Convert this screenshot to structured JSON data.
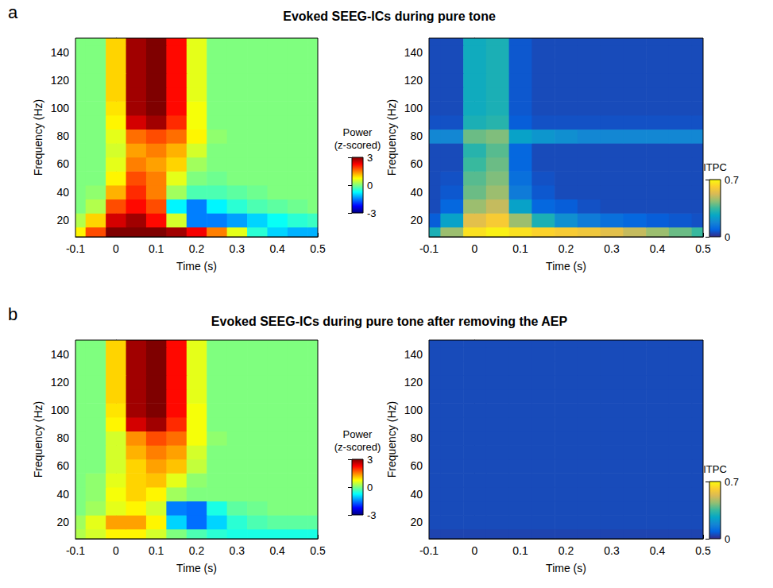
{
  "chart_data": [
    {
      "type": "heatmap",
      "panel": "a",
      "title": "Evoked SEEG-ICs during pure tone",
      "x_label": "Time (s)",
      "y_label": "Frequency (Hz)",
      "xlim": [
        -0.1,
        0.5
      ],
      "xticks": [
        -0.1,
        0,
        0.1,
        0.2,
        0.3,
        0.4,
        0.5
      ],
      "ylim": [
        8,
        150
      ],
      "yticks": [
        20,
        40,
        60,
        80,
        100,
        120,
        140
      ],
      "grid": false,
      "x": [
        -0.1,
        -0.05,
        0,
        0.05,
        0.1,
        0.15,
        0.2,
        0.25,
        0.3,
        0.35,
        0.4,
        0.45,
        0.5
      ],
      "y": [
        10,
        20,
        30,
        40,
        50,
        60,
        70,
        80,
        90,
        100,
        110,
        120,
        130,
        140,
        150
      ],
      "z": [
        [
          0.8,
          1.8,
          3,
          3,
          3,
          2.8,
          2.3,
          1.5,
          0.6,
          -0.5,
          -1.0,
          -1.2,
          -1.2
        ],
        [
          0.3,
          1.0,
          2.5,
          2.8,
          2.2,
          0.5,
          -1.5,
          -1.5,
          -1.3,
          -1.0,
          -0.7,
          -0.5,
          -0.4
        ],
        [
          0,
          0.3,
          1.8,
          2.2,
          1.8,
          -0.8,
          -1.5,
          -0.8,
          -0.5,
          -0.3,
          -0.2,
          -0.1,
          0
        ],
        [
          0,
          0.1,
          1.2,
          2.0,
          1.5,
          0.2,
          -0.3,
          -0.3,
          -0.2,
          -0.1,
          0,
          0,
          0
        ],
        [
          0,
          0,
          0.8,
          1.8,
          1.5,
          0.6,
          0,
          -0.1,
          0,
          0,
          0,
          0,
          0
        ],
        [
          0,
          0,
          0.6,
          1.5,
          1.3,
          1.0,
          0.2,
          0,
          0,
          0,
          0,
          0,
          0
        ],
        [
          0,
          0,
          0.5,
          1.3,
          1.5,
          1.2,
          0.5,
          0,
          0,
          0,
          0,
          0,
          0
        ],
        [
          0,
          0,
          0.6,
          1.6,
          1.8,
          1.6,
          0.8,
          0.1,
          0,
          0,
          0,
          0,
          0
        ],
        [
          0,
          0,
          0.8,
          2.5,
          2.8,
          2.0,
          0.7,
          0,
          0,
          0,
          0,
          0,
          0
        ],
        [
          0,
          0,
          0.9,
          2.8,
          3,
          2.2,
          0.7,
          0,
          0,
          0,
          0,
          0,
          0
        ],
        [
          0,
          0,
          1.0,
          2.8,
          3,
          2.2,
          0.6,
          0,
          0,
          0,
          0,
          0,
          0
        ],
        [
          0,
          0,
          1.0,
          2.8,
          3,
          2.2,
          0.6,
          0,
          0,
          0,
          0,
          0,
          0
        ],
        [
          0,
          0,
          1.0,
          2.8,
          3,
          2.2,
          0.6,
          0,
          0,
          0,
          0,
          0,
          0
        ],
        [
          0,
          0,
          1.0,
          2.8,
          3,
          2.2,
          0.6,
          0,
          0,
          0,
          0,
          0,
          0
        ],
        [
          0,
          0,
          1.0,
          2.8,
          3,
          2.2,
          0.6,
          0,
          0,
          0,
          0,
          0,
          0
        ]
      ],
      "colorbar": {
        "label": "Power (z-scored)",
        "range": [
          -3,
          3
        ],
        "ticks": [
          -3,
          0,
          3
        ],
        "colors": [
          "#00007f",
          "#0000ff",
          "#007fff",
          "#00ffff",
          "#7fff7f",
          "#ffff00",
          "#ff7f00",
          "#ff0000",
          "#7f0000"
        ]
      }
    },
    {
      "type": "heatmap",
      "x_label": "Time (s)",
      "y_label": "Frequency (Hz)",
      "xlim": [
        -0.1,
        0.5
      ],
      "xticks": [
        -0.1,
        0,
        0.1,
        0.2,
        0.3,
        0.4,
        0.5
      ],
      "ylim": [
        8,
        150
      ],
      "yticks": [
        20,
        40,
        60,
        80,
        100,
        120,
        140
      ],
      "grid": false,
      "x": [
        -0.1,
        -0.05,
        0,
        0.05,
        0.1,
        0.15,
        0.2,
        0.25,
        0.3,
        0.35,
        0.4,
        0.45,
        0.5
      ],
      "y": [
        10,
        20,
        30,
        40,
        50,
        60,
        70,
        80,
        90,
        100,
        110,
        120,
        130,
        140,
        150
      ],
      "z": [
        [
          0.3,
          0.45,
          0.65,
          0.68,
          0.65,
          0.62,
          0.6,
          0.58,
          0.55,
          0.5,
          0.45,
          0.4,
          0.35
        ],
        [
          0.08,
          0.25,
          0.55,
          0.6,
          0.45,
          0.3,
          0.2,
          0.15,
          0.12,
          0.1,
          0.08,
          0.07,
          0.06
        ],
        [
          0.05,
          0.1,
          0.45,
          0.5,
          0.25,
          0.1,
          0.08,
          0.06,
          0.05,
          0.05,
          0.05,
          0.05,
          0.05
        ],
        [
          0.05,
          0.07,
          0.4,
          0.45,
          0.15,
          0.07,
          0.05,
          0.05,
          0.05,
          0.05,
          0.05,
          0.05,
          0.05
        ],
        [
          0.05,
          0.06,
          0.38,
          0.42,
          0.12,
          0.06,
          0.05,
          0.05,
          0.05,
          0.05,
          0.05,
          0.05,
          0.05
        ],
        [
          0.05,
          0.05,
          0.35,
          0.4,
          0.1,
          0.05,
          0.05,
          0.05,
          0.05,
          0.05,
          0.05,
          0.05,
          0.05
        ],
        [
          0.05,
          0.05,
          0.32,
          0.38,
          0.1,
          0.05,
          0.05,
          0.05,
          0.05,
          0.05,
          0.05,
          0.05,
          0.05
        ],
        [
          0.18,
          0.18,
          0.4,
          0.42,
          0.25,
          0.22,
          0.2,
          0.18,
          0.18,
          0.18,
          0.18,
          0.18,
          0.18
        ],
        [
          0.06,
          0.06,
          0.3,
          0.32,
          0.08,
          0.06,
          0.06,
          0.06,
          0.06,
          0.06,
          0.06,
          0.06,
          0.06
        ],
        [
          0.05,
          0.05,
          0.28,
          0.3,
          0.07,
          0.05,
          0.05,
          0.05,
          0.05,
          0.05,
          0.05,
          0.05,
          0.05
        ],
        [
          0.05,
          0.05,
          0.28,
          0.3,
          0.07,
          0.05,
          0.05,
          0.05,
          0.05,
          0.05,
          0.05,
          0.05,
          0.05
        ],
        [
          0.05,
          0.05,
          0.28,
          0.3,
          0.07,
          0.05,
          0.05,
          0.05,
          0.05,
          0.05,
          0.05,
          0.05,
          0.05
        ],
        [
          0.05,
          0.05,
          0.28,
          0.3,
          0.07,
          0.05,
          0.05,
          0.05,
          0.05,
          0.05,
          0.05,
          0.05,
          0.05
        ],
        [
          0.05,
          0.05,
          0.28,
          0.3,
          0.07,
          0.05,
          0.05,
          0.05,
          0.05,
          0.05,
          0.05,
          0.05,
          0.05
        ],
        [
          0.05,
          0.05,
          0.28,
          0.3,
          0.07,
          0.05,
          0.05,
          0.05,
          0.05,
          0.05,
          0.05,
          0.05,
          0.05
        ]
      ],
      "colorbar": {
        "label": "ITPC",
        "range": [
          0,
          0.7
        ],
        "ticks": [
          0,
          0.7
        ],
        "colors": [
          "#352a87",
          "#0363e1",
          "#1485d4",
          "#06a7c6",
          "#38b99e",
          "#92bf73",
          "#d9ba56",
          "#fcce2e",
          "#f9fb0e"
        ]
      }
    },
    {
      "type": "heatmap",
      "panel": "b",
      "title": "Evoked SEEG-ICs during pure tone after removing the AEP",
      "x_label": "Time (s)",
      "y_label": "Frequency (Hz)",
      "xlim": [
        -0.1,
        0.5
      ],
      "xticks": [
        -0.1,
        0,
        0.1,
        0.2,
        0.3,
        0.4,
        0.5
      ],
      "ylim": [
        8,
        150
      ],
      "yticks": [
        20,
        40,
        60,
        80,
        100,
        120,
        140
      ],
      "grid": false,
      "x": [
        -0.1,
        -0.05,
        0,
        0.05,
        0.1,
        0.15,
        0.2,
        0.25,
        0.3,
        0.35,
        0.4,
        0.45,
        0.5
      ],
      "y": [
        10,
        20,
        30,
        40,
        50,
        60,
        70,
        80,
        90,
        100,
        110,
        120,
        130,
        140,
        150
      ],
      "z": [
        [
          0.3,
          0.5,
          0.8,
          0.8,
          0.5,
          0,
          -0.3,
          -0.5,
          -0.6,
          -0.6,
          -0.6,
          -0.6,
          -0.6
        ],
        [
          0.2,
          0.6,
          1.3,
          1.3,
          0.8,
          -1.0,
          -1.6,
          -1.0,
          -0.5,
          -0.3,
          -0.2,
          -0.2,
          -0.2
        ],
        [
          0,
          0.2,
          0.6,
          0.8,
          0.5,
          -1.5,
          -1.6,
          -0.6,
          -0.2,
          -0.1,
          0,
          0,
          0
        ],
        [
          0,
          0.1,
          0.7,
          1.0,
          0.8,
          0.2,
          0,
          0,
          0,
          0,
          0,
          0,
          0
        ],
        [
          0,
          0.1,
          0.6,
          1.0,
          1.1,
          0.6,
          0.1,
          0,
          0,
          0,
          0,
          0,
          0
        ],
        [
          0,
          0,
          0.5,
          1.0,
          1.3,
          1.1,
          0.4,
          0,
          0,
          0,
          0,
          0,
          0
        ],
        [
          0,
          0,
          0.5,
          1.2,
          1.5,
          1.3,
          0.5,
          0,
          0,
          0,
          0,
          0,
          0
        ],
        [
          0,
          0,
          0.5,
          1.4,
          1.8,
          1.6,
          0.7,
          0.1,
          0,
          0,
          0,
          0,
          0
        ],
        [
          0,
          0,
          0.8,
          2.5,
          2.8,
          2.0,
          0.7,
          0,
          0,
          0,
          0,
          0,
          0
        ],
        [
          0,
          0,
          0.9,
          2.8,
          3,
          2.2,
          0.7,
          0,
          0,
          0,
          0,
          0,
          0
        ],
        [
          0,
          0,
          1.0,
          2.8,
          3,
          2.2,
          0.6,
          0,
          0,
          0,
          0,
          0,
          0
        ],
        [
          0,
          0,
          1.0,
          2.8,
          3,
          2.2,
          0.6,
          0,
          0,
          0,
          0,
          0,
          0
        ],
        [
          0,
          0,
          1.0,
          2.8,
          3,
          2.2,
          0.6,
          0,
          0,
          0,
          0,
          0,
          0
        ],
        [
          0,
          0,
          1.0,
          2.8,
          3,
          2.2,
          0.6,
          0,
          0,
          0,
          0,
          0,
          0
        ],
        [
          0,
          0,
          1.0,
          2.8,
          3,
          2.2,
          0.6,
          0,
          0,
          0,
          0,
          0,
          0
        ]
      ],
      "colorbar": {
        "label": "Power (z-scored)",
        "range": [
          -3,
          3
        ],
        "ticks": [
          -3,
          0,
          3
        ],
        "colors": [
          "#00007f",
          "#0000ff",
          "#007fff",
          "#00ffff",
          "#7fff7f",
          "#ffff00",
          "#ff7f00",
          "#ff0000",
          "#7f0000"
        ]
      }
    },
    {
      "type": "heatmap",
      "x_label": "Time (s)",
      "y_label": "Frequency (Hz)",
      "xlim": [
        -0.1,
        0.5
      ],
      "xticks": [
        -0.1,
        0,
        0.1,
        0.2,
        0.3,
        0.4,
        0.5
      ],
      "ylim": [
        8,
        150
      ],
      "yticks": [
        20,
        40,
        60,
        80,
        100,
        120,
        140
      ],
      "grid": false,
      "x": [
        -0.1,
        -0.05,
        0,
        0.05,
        0.1,
        0.15,
        0.2,
        0.25,
        0.3,
        0.35,
        0.4,
        0.45,
        0.5
      ],
      "y": [
        10,
        20,
        30,
        40,
        50,
        60,
        70,
        80,
        90,
        100,
        110,
        120,
        130,
        140,
        150
      ],
      "z": [
        [
          0.04,
          0.04,
          0.04,
          0.04,
          0.04,
          0.04,
          0.04,
          0.04,
          0.04,
          0.04,
          0.04,
          0.04,
          0.04
        ],
        [
          0.05,
          0.05,
          0.05,
          0.05,
          0.05,
          0.05,
          0.05,
          0.05,
          0.05,
          0.05,
          0.05,
          0.05,
          0.05
        ],
        [
          0.05,
          0.05,
          0.05,
          0.05,
          0.05,
          0.05,
          0.05,
          0.05,
          0.05,
          0.05,
          0.05,
          0.05,
          0.05
        ],
        [
          0.05,
          0.05,
          0.05,
          0.05,
          0.05,
          0.05,
          0.05,
          0.05,
          0.05,
          0.05,
          0.05,
          0.05,
          0.05
        ],
        [
          0.05,
          0.05,
          0.05,
          0.05,
          0.05,
          0.05,
          0.05,
          0.05,
          0.05,
          0.05,
          0.05,
          0.05,
          0.05
        ],
        [
          0.05,
          0.05,
          0.05,
          0.05,
          0.05,
          0.05,
          0.05,
          0.05,
          0.05,
          0.05,
          0.05,
          0.05,
          0.05
        ],
        [
          0.05,
          0.05,
          0.05,
          0.05,
          0.05,
          0.05,
          0.05,
          0.05,
          0.05,
          0.05,
          0.05,
          0.05,
          0.05
        ],
        [
          0.05,
          0.05,
          0.05,
          0.05,
          0.05,
          0.05,
          0.05,
          0.05,
          0.05,
          0.05,
          0.05,
          0.05,
          0.05
        ],
        [
          0.05,
          0.05,
          0.05,
          0.05,
          0.05,
          0.05,
          0.05,
          0.05,
          0.05,
          0.05,
          0.05,
          0.05,
          0.05
        ],
        [
          0.05,
          0.05,
          0.05,
          0.05,
          0.05,
          0.05,
          0.05,
          0.05,
          0.05,
          0.05,
          0.05,
          0.05,
          0.05
        ],
        [
          0.05,
          0.05,
          0.05,
          0.05,
          0.05,
          0.05,
          0.05,
          0.05,
          0.05,
          0.05,
          0.05,
          0.05,
          0.05
        ],
        [
          0.05,
          0.05,
          0.05,
          0.05,
          0.05,
          0.05,
          0.05,
          0.05,
          0.05,
          0.05,
          0.05,
          0.05,
          0.05
        ],
        [
          0.05,
          0.05,
          0.05,
          0.05,
          0.05,
          0.05,
          0.05,
          0.05,
          0.05,
          0.05,
          0.05,
          0.05,
          0.05
        ],
        [
          0.05,
          0.05,
          0.05,
          0.05,
          0.05,
          0.05,
          0.05,
          0.05,
          0.05,
          0.05,
          0.05,
          0.05,
          0.05
        ],
        [
          0.05,
          0.05,
          0.05,
          0.05,
          0.05,
          0.05,
          0.05,
          0.05,
          0.05,
          0.05,
          0.05,
          0.05,
          0.05
        ]
      ],
      "colorbar": {
        "label": "ITPC",
        "range": [
          0,
          0.7
        ],
        "ticks": [
          0,
          0.7
        ],
        "colors": [
          "#352a87",
          "#0363e1",
          "#1485d4",
          "#06a7c6",
          "#38b99e",
          "#92bf73",
          "#d9ba56",
          "#fcce2e",
          "#f9fb0e"
        ]
      }
    }
  ]
}
